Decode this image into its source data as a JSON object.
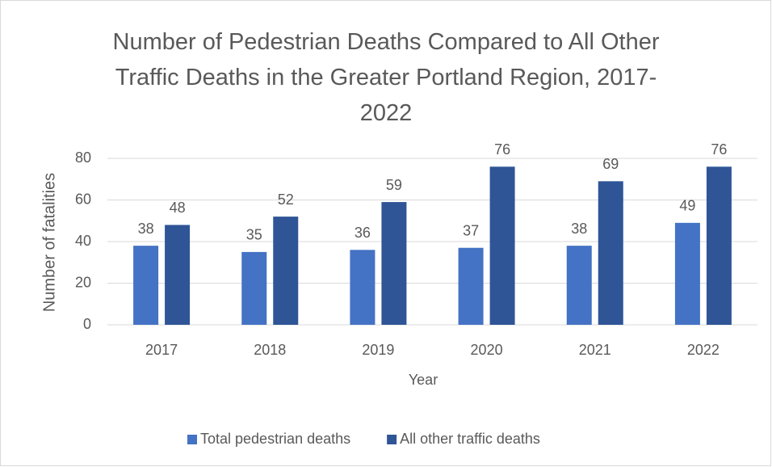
{
  "chart_data": {
    "type": "bar",
    "title": "Number of Pedestrian Deaths Compared to All Other Traffic Deaths in the Greater Portland Region, 2017-2022",
    "x_label": "Year",
    "y_label": "Number of fatalities",
    "categories": [
      "2017",
      "2018",
      "2019",
      "2020",
      "2021",
      "2022"
    ],
    "series": [
      {
        "name": "Total pedestrian deaths",
        "color": "#4472c4",
        "values": [
          38,
          35,
          36,
          37,
          38,
          49
        ]
      },
      {
        "name": "All other traffic deaths",
        "color": "#2f5597",
        "values": [
          48,
          52,
          59,
          76,
          69,
          76
        ]
      }
    ],
    "ylim": [
      0,
      80
    ],
    "yticks": [
      0,
      20,
      40,
      60,
      80
    ],
    "grid": true,
    "legend": "bottom"
  }
}
